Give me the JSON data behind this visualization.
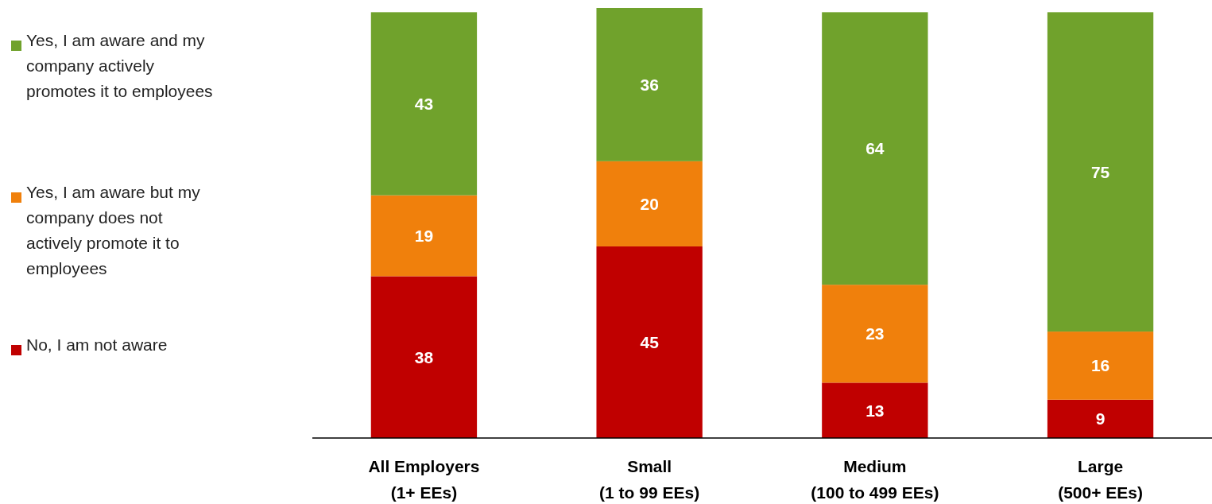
{
  "chart_data": {
    "type": "bar",
    "stacked": true,
    "categories": [
      "All Employers\n(1+ EEs)",
      "Small\n(1 to 99 EEs)",
      "Medium\n(100 to 499 EEs)",
      "Large\n(500+ EEs)"
    ],
    "series": [
      {
        "name": "No, I am not aware",
        "color": "#c00000",
        "values": [
          38,
          45,
          13,
          9
        ]
      },
      {
        "name": "Yes, I am aware but my company does not actively promote it to employees",
        "color": "#f0800c",
        "values": [
          19,
          20,
          23,
          16
        ]
      },
      {
        "name": "Yes, I am aware and my company actively promotes it to employees",
        "color": "#70a22c",
        "values": [
          43,
          36,
          64,
          75
        ]
      }
    ],
    "ylim": [
      0,
      101
    ],
    "data_labels": true,
    "legend": "left"
  }
}
